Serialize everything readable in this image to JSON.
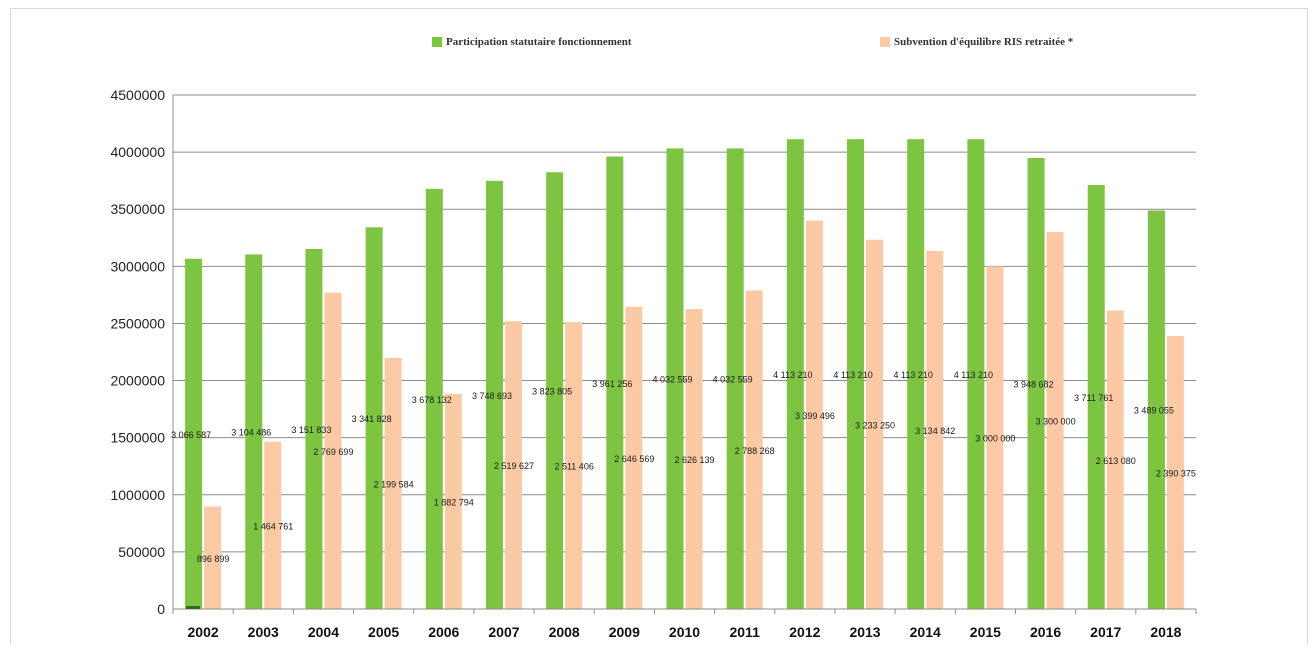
{
  "chart_data": {
    "type": "bar",
    "categories": [
      "2002",
      "2003",
      "2004",
      "2005",
      "2006",
      "2007",
      "2008",
      "2009",
      "2010",
      "2011",
      "2012",
      "2013",
      "2014",
      "2015",
      "2016",
      "2017",
      "2018"
    ],
    "series": [
      {
        "name": "Participation statutaire fonctionnement",
        "color": "#7dc540",
        "values": [
          3066587,
          3104486,
          3151833,
          3341828,
          3678132,
          3748693,
          3823805,
          3961256,
          4032559,
          4032559,
          4113210,
          4113210,
          4113210,
          4113210,
          3948682,
          3711761,
          3489055
        ],
        "labels": [
          "3 066 587",
          "3 104 486",
          "3 151 833",
          "3 341 828",
          "3 678 132",
          "3 748 693",
          "3 823 805",
          "3 961 256",
          "4 032 559",
          "4 032 559",
          "4 113 210",
          "4 113 210",
          "4 113 210",
          "4 113 210",
          "3 948 682",
          "3 711 761",
          "3 489 055"
        ]
      },
      {
        "name": "Subvention d'équilibre RIS retraitée *",
        "color": "#fbc9a3",
        "values": [
          896899,
          1464761,
          2769699,
          2199584,
          1882794,
          2519627,
          2511406,
          2646569,
          2626139,
          2788268,
          3399496,
          3233250,
          3134842,
          3000000,
          3300000,
          2613080,
          2390375
        ],
        "labels": [
          "896 899",
          "1 464 761",
          "2 769 699",
          "2 199 584",
          "1 882 794",
          "2 519 627",
          "2 511 406",
          "2 646 569",
          "2 626 139",
          "2 788 268",
          "3 399 496",
          "3 233 250",
          "3 134 842",
          "3 000 000",
          "3 300 000",
          "2 613 080",
          "2 390 375"
        ]
      }
    ],
    "yticks": [
      "0",
      "500000",
      "1000000",
      "1500000",
      "2000000",
      "2500000",
      "3000000",
      "3500000",
      "4000000",
      "4500000"
    ],
    "ylim": [
      0,
      4500000
    ],
    "grid": true,
    "legend_position": "top"
  }
}
